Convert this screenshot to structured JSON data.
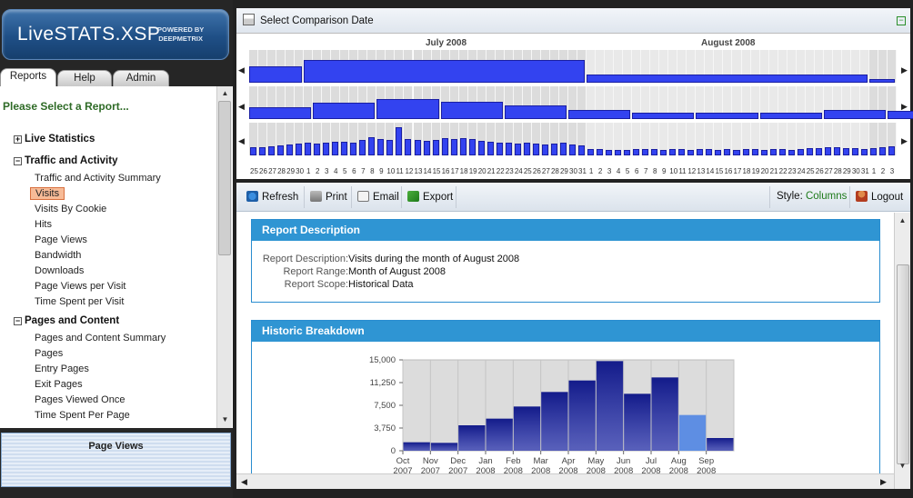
{
  "app": {
    "name": "LiveSTATS.XSP",
    "powered_line1": "POWERED BY",
    "powered_line2": "DEEPMETRIX"
  },
  "left_tabs": [
    {
      "label": "Reports",
      "active": true
    },
    {
      "label": "Help"
    },
    {
      "label": "Admin"
    }
  ],
  "menu": {
    "title": "Please Select a Report...",
    "sections": [
      {
        "toggle": "+",
        "label": "Live Statistics",
        "items": []
      },
      {
        "toggle": "−",
        "label": "Traffic and Activity",
        "items": [
          "Traffic and Activity Summary",
          "Visits",
          "Visits By Cookie",
          "Hits",
          "Page Views",
          "Bandwidth",
          "Downloads",
          "Page Views per Visit",
          "Time Spent per Visit"
        ]
      },
      {
        "toggle": "−",
        "label": "Pages and Content",
        "items": [
          "Pages and Content Summary",
          "Pages",
          "Entry Pages",
          "Exit Pages",
          "Pages Viewed Once",
          "Time Spent Per Page"
        ]
      }
    ],
    "selected": "Visits"
  },
  "bottom_box": {
    "label": "Page Views"
  },
  "timeline": {
    "title": "Select Comparison Date",
    "collapse": "−",
    "months": [
      "July 2008",
      "August 2008"
    ],
    "days": [
      "25",
      "26",
      "27",
      "28",
      "29",
      "30",
      "1",
      "2",
      "3",
      "4",
      "5",
      "6",
      "7",
      "8",
      "9",
      "10",
      "11",
      "12",
      "13",
      "14",
      "15",
      "16",
      "17",
      "18",
      "19",
      "20",
      "21",
      "22",
      "23",
      "24",
      "25",
      "26",
      "27",
      "28",
      "29",
      "30",
      "31",
      "1",
      "2",
      "3",
      "4",
      "5",
      "6",
      "7",
      "8",
      "9",
      "10",
      "11",
      "12",
      "13",
      "14",
      "15",
      "16",
      "17",
      "18",
      "19",
      "20",
      "21",
      "22",
      "23",
      "24",
      "25",
      "26",
      "27",
      "28",
      "29",
      "30",
      "31",
      "1",
      "2",
      "3"
    ],
    "daily_levels": [
      0.45,
      0.45,
      0.5,
      0.55,
      0.6,
      0.65,
      0.7,
      0.65,
      0.7,
      0.75,
      0.75,
      0.7,
      0.85,
      1.0,
      0.9,
      0.85,
      1.55,
      0.9,
      0.85,
      0.8,
      0.85,
      0.95,
      0.9,
      0.95,
      0.9,
      0.8,
      0.75,
      0.7,
      0.7,
      0.65,
      0.7,
      0.65,
      0.6,
      0.65,
      0.7,
      0.6,
      0.55,
      0.35,
      0.35,
      0.3,
      0.3,
      0.3,
      0.35,
      0.35,
      0.35,
      0.3,
      0.35,
      0.35,
      0.3,
      0.35,
      0.35,
      0.3,
      0.35,
      0.3,
      0.35,
      0.35,
      0.3,
      0.35,
      0.35,
      0.3,
      0.35,
      0.4,
      0.4,
      0.45,
      0.45,
      0.4,
      0.4,
      0.35,
      0.4,
      0.45,
      0.5
    ],
    "weekly_levels": [
      0.45,
      0.6,
      0.75,
      0.65,
      0.5,
      0.35,
      0.25,
      0.25,
      0.25,
      0.35,
      0.3
    ],
    "monthly_levels": [
      0.5,
      0.7,
      0.25,
      0.1
    ]
  },
  "toolbar": {
    "refresh": "Refresh",
    "print": "Print",
    "email": "Email",
    "export": "Export",
    "style_label": "Style:",
    "style_value": "Columns",
    "logout": "Logout"
  },
  "report_description": {
    "heading": "Report Description",
    "rows": [
      {
        "key": "Report Description:",
        "value": "Visits during the month of August 2008"
      },
      {
        "key": "Report Range:",
        "value": "Month of August 2008"
      },
      {
        "key": "Report Scope:",
        "value": "Historical Data"
      }
    ]
  },
  "historic": {
    "heading": "Historic Breakdown"
  },
  "chart_data": {
    "type": "bar",
    "categories": [
      "Oct 2007",
      "Nov 2007",
      "Dec 2007",
      "Jan 2008",
      "Feb 2008",
      "Mar 2008",
      "Apr 2008",
      "May 2008",
      "Jun 2008",
      "Jul 2008",
      "Aug 2008",
      "Sep 2008"
    ],
    "values": [
      1400,
      1300,
      4200,
      5300,
      7300,
      9700,
      11600,
      14800,
      9400,
      12100,
      5900,
      2100
    ],
    "y_ticks": [
      "0",
      "3,750",
      "7,500",
      "11,250",
      "15,000"
    ],
    "ylim": [
      0,
      15000
    ],
    "highlight_index": 10,
    "colors": {
      "bar": "#2e38b0",
      "bar_dark": "#131b8a",
      "highlight": "#5e8ee3",
      "plot_bg": "#dcdcdc"
    },
    "grid": true
  },
  "colors": {
    "accent": "#2f95d3",
    "selected_item": "#f7bb97",
    "menu_title": "#2f6b27",
    "timeline_bar": "#3343f0"
  }
}
